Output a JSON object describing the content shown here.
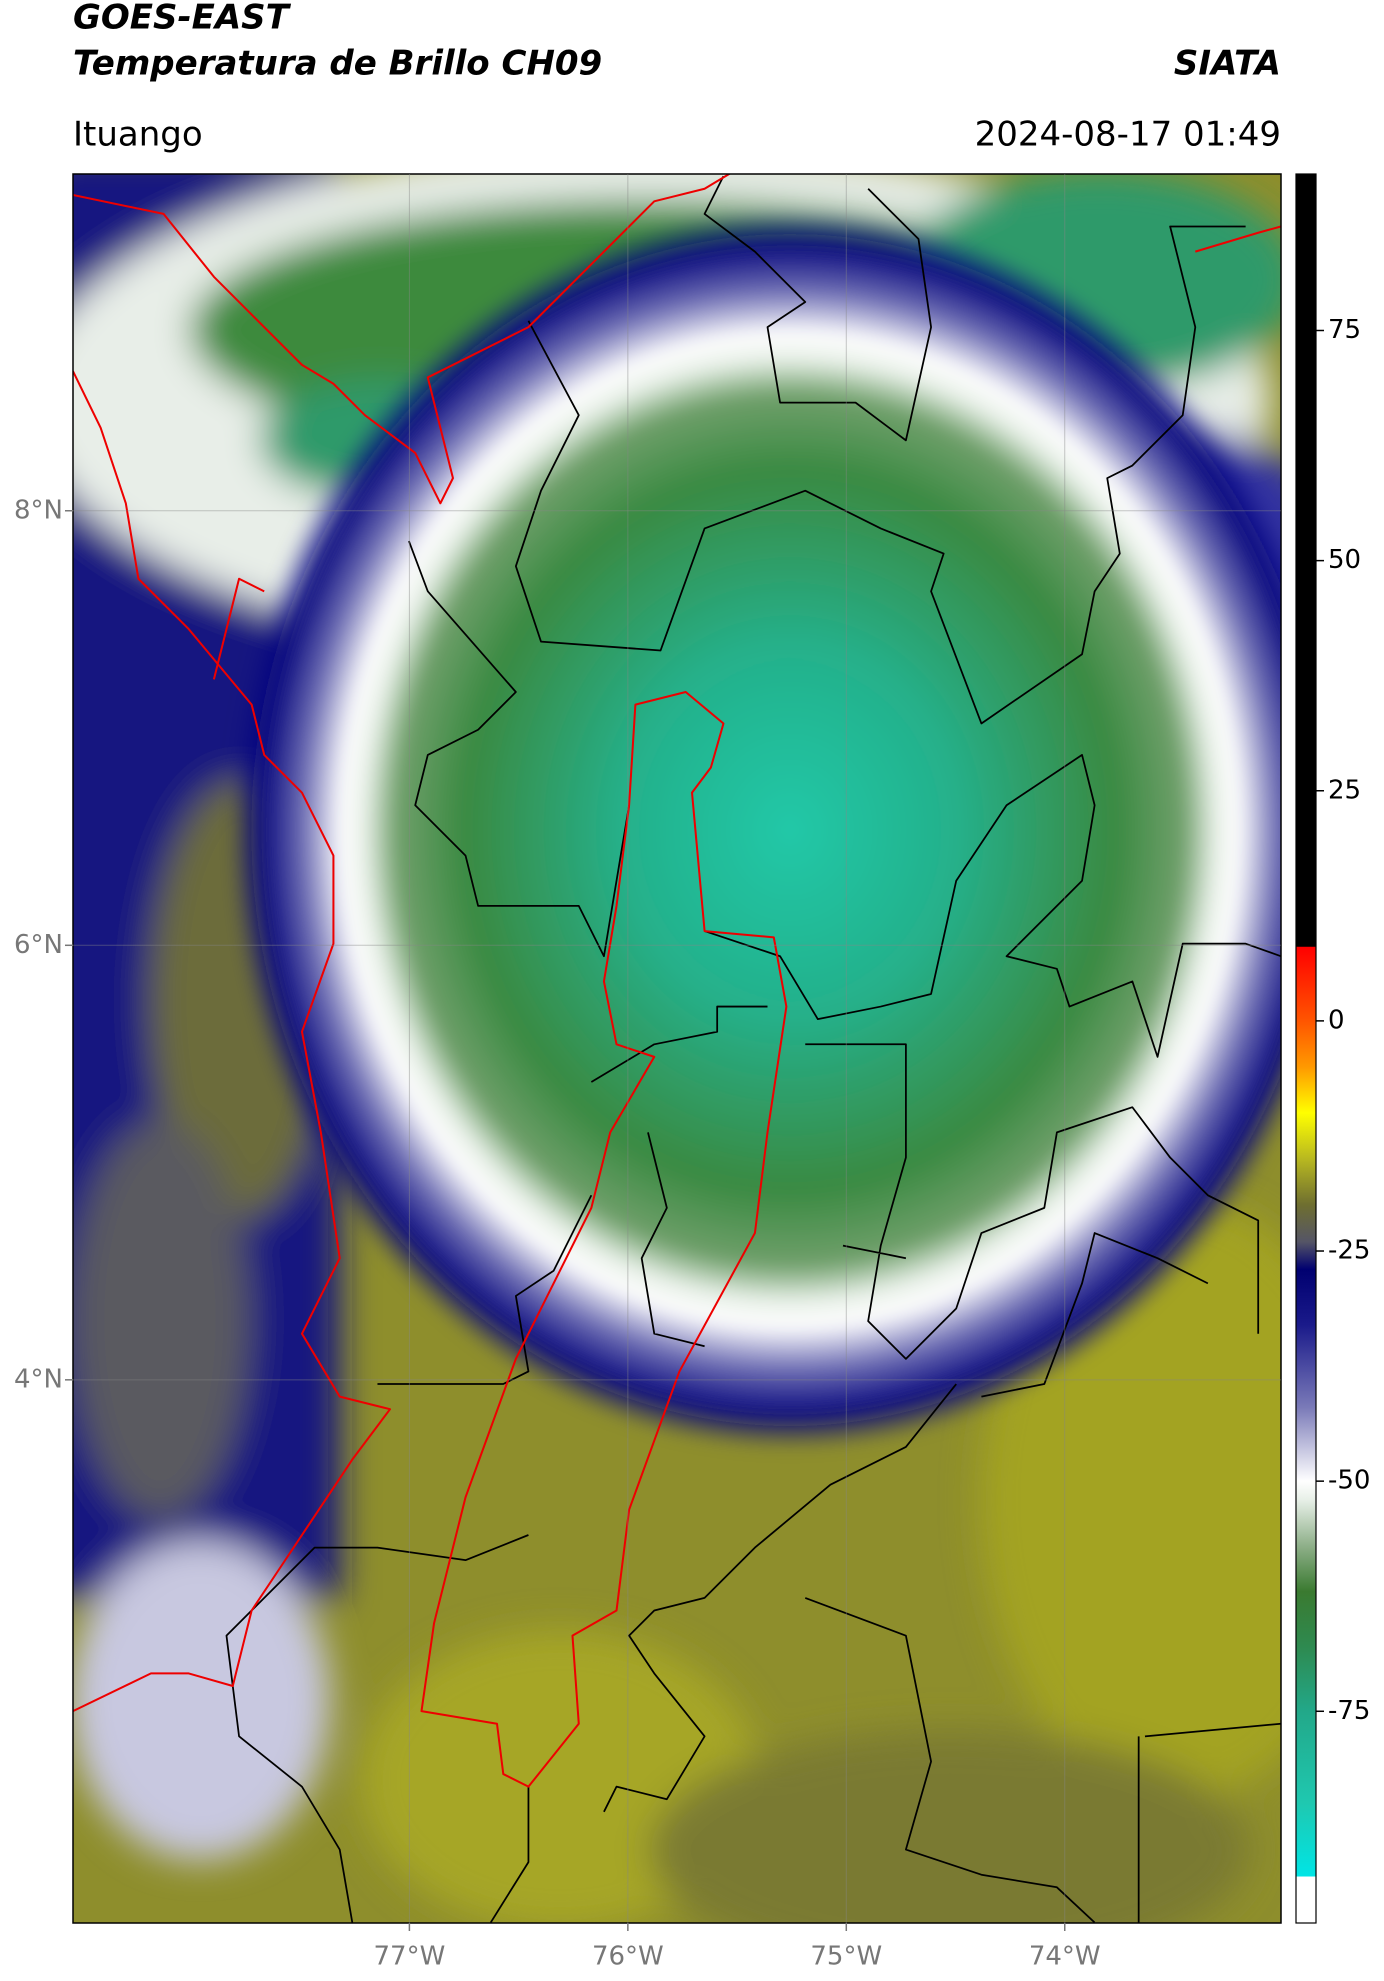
{
  "chart_data": {
    "type": "map",
    "title": "GOES-EAST",
    "subtitle": "Temperatura de Brillo CH09",
    "brand": "SIATA",
    "location": "Ituango",
    "datetime": "2024-08-17 01:49",
    "xlim": [
      -78.54,
      -73.01
    ],
    "ylim": [
      1.5,
      9.55
    ],
    "xticks": [
      {
        "value": -77,
        "label": "77°W"
      },
      {
        "value": -76,
        "label": "76°W"
      },
      {
        "value": -75,
        "label": "75°W"
      },
      {
        "value": -74,
        "label": "74°W"
      }
    ],
    "yticks": [
      {
        "value": 4,
        "label": "4°N"
      },
      {
        "value": 6,
        "label": "6°N"
      },
      {
        "value": 8,
        "label": "8°N"
      }
    ],
    "grid": true,
    "colorbar": {
      "lim": [
        -98,
        92
      ],
      "ticks": [
        75,
        50,
        25,
        0,
        -25,
        -50,
        -75
      ],
      "colormap": [
        {
          "value": -98,
          "color": "#ffffff"
        },
        {
          "value": -93,
          "color": "#ffffff"
        },
        {
          "value": -92.9,
          "color": "#00e5e5"
        },
        {
          "value": -85,
          "color": "#1fc8b0"
        },
        {
          "value": -75,
          "color": "#22a889"
        },
        {
          "value": -68,
          "color": "#2e8a50"
        },
        {
          "value": -62,
          "color": "#3a7a30"
        },
        {
          "value": -57,
          "color": "#8fb08a"
        },
        {
          "value": -52,
          "color": "#e8f0e8"
        },
        {
          "value": -50,
          "color": "#ffffff"
        },
        {
          "value": -42,
          "color": "#7a7ab8"
        },
        {
          "value": -33,
          "color": "#1a1a8a"
        },
        {
          "value": -27,
          "color": "#000070"
        },
        {
          "value": -24,
          "color": "#555566"
        },
        {
          "value": -20,
          "color": "#6e6e30"
        },
        {
          "value": -15,
          "color": "#b8b820"
        },
        {
          "value": -10,
          "color": "#ffff00"
        },
        {
          "value": -5,
          "color": "#ff9900"
        },
        {
          "value": 0,
          "color": "#ff5500"
        },
        {
          "value": 8,
          "color": "#ff0000"
        },
        {
          "value": 8.1,
          "color": "#000000"
        },
        {
          "value": 92,
          "color": "#000000"
        }
      ]
    }
  }
}
